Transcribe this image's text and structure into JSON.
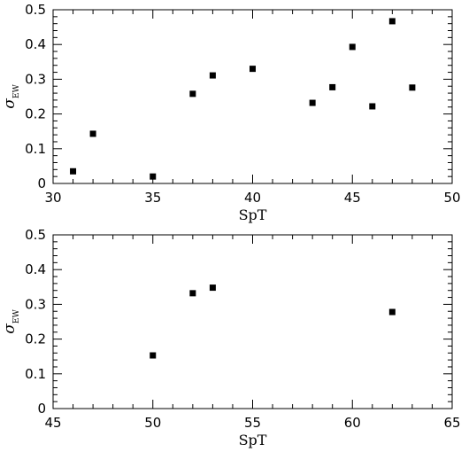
{
  "chart_data": [
    {
      "type": "scatter",
      "xlabel": "SpT",
      "ylabel": "σ",
      "ylabel_sub": "EW",
      "xlim": [
        30,
        50
      ],
      "ylim": [
        0,
        0.5
      ],
      "x_ticks": [
        "30",
        "35",
        "40",
        "45",
        "50"
      ],
      "y_ticks": [
        "0",
        "0.1",
        "0.2",
        "0.3",
        "0.4",
        "0.5"
      ],
      "grid": false,
      "points": [
        {
          "x": 31,
          "y": 0.035
        },
        {
          "x": 32,
          "y": 0.143
        },
        {
          "x": 35,
          "y": 0.02
        },
        {
          "x": 37,
          "y": 0.258
        },
        {
          "x": 38,
          "y": 0.311
        },
        {
          "x": 40,
          "y": 0.33
        },
        {
          "x": 43,
          "y": 0.232
        },
        {
          "x": 44,
          "y": 0.277
        },
        {
          "x": 45,
          "y": 0.393
        },
        {
          "x": 46,
          "y": 0.222
        },
        {
          "x": 47,
          "y": 0.467
        },
        {
          "x": 48,
          "y": 0.276
        }
      ]
    },
    {
      "type": "scatter",
      "xlabel": "SpT",
      "ylabel": "σ",
      "ylabel_sub": "EW",
      "xlim": [
        45,
        65
      ],
      "ylim": [
        0,
        0.5
      ],
      "x_ticks": [
        "45",
        "50",
        "55",
        "60",
        "65"
      ],
      "y_ticks": [
        "0",
        "0.1",
        "0.2",
        "0.3",
        "0.4",
        "0.5"
      ],
      "grid": false,
      "points": [
        {
          "x": 50,
          "y": 0.153
        },
        {
          "x": 52,
          "y": 0.332
        },
        {
          "x": 53,
          "y": 0.348
        },
        {
          "x": 62,
          "y": 0.278
        }
      ]
    }
  ]
}
